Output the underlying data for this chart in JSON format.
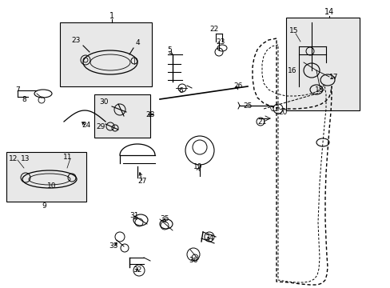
{
  "bg_color": "#ffffff",
  "line_color": "#000000",
  "box_color": "#e8e8e8",
  "fig_width": 4.89,
  "fig_height": 3.6,
  "dpi": 100
}
